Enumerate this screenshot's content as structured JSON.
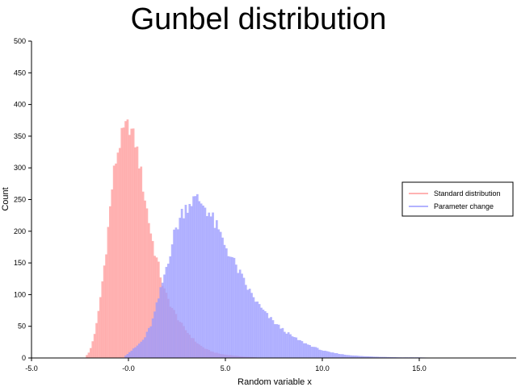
{
  "chart_data": {
    "type": "histogram",
    "title": "Gunbel distribution",
    "xlabel": "Random variable x",
    "ylabel": "Count",
    "xlim": [
      -5.0,
      20.0
    ],
    "ylim": [
      0,
      500
    ],
    "x_tick_labels": [
      "-5.0",
      "-0.0",
      "5.0",
      "10.0",
      "15.0"
    ],
    "y_tick_labels": [
      "0",
      "50",
      "100",
      "150",
      "200",
      "250",
      "300",
      "350",
      "400",
      "450",
      "500"
    ],
    "grid": false,
    "legend_position": "right",
    "series": [
      {
        "name": "Standard distribution",
        "color": "#ff9999",
        "opacity": 0.75,
        "points": [
          [
            -2.2,
            3
          ],
          [
            -2.0,
            10
          ],
          [
            -1.8,
            32
          ],
          [
            -1.6,
            60
          ],
          [
            -1.4,
            108
          ],
          [
            -1.2,
            158
          ],
          [
            -1.0,
            220
          ],
          [
            -0.8,
            285
          ],
          [
            -0.6,
            320
          ],
          [
            -0.4,
            345
          ],
          [
            -0.2,
            362
          ],
          [
            0.0,
            368
          ],
          [
            0.2,
            355
          ],
          [
            0.4,
            335
          ],
          [
            0.6,
            300
          ],
          [
            0.8,
            262
          ],
          [
            1.0,
            225
          ],
          [
            1.2,
            190
          ],
          [
            1.4,
            162
          ],
          [
            1.6,
            138
          ],
          [
            1.8,
            110
          ],
          [
            2.0,
            95
          ],
          [
            2.2,
            82
          ],
          [
            2.4,
            70
          ],
          [
            2.6,
            60
          ],
          [
            2.8,
            50
          ],
          [
            3.0,
            42
          ],
          [
            3.2,
            35
          ],
          [
            3.4,
            28
          ],
          [
            3.6,
            22
          ],
          [
            3.8,
            18
          ],
          [
            4.0,
            14
          ],
          [
            4.4,
            9
          ],
          [
            4.8,
            6
          ],
          [
            5.4,
            4
          ],
          [
            6.0,
            2
          ],
          [
            6.6,
            1
          ]
        ]
      },
      {
        "name": "Parameter change",
        "color": "#9999ff",
        "opacity": 0.75,
        "points": [
          [
            -0.2,
            3
          ],
          [
            0.0,
            8
          ],
          [
            0.4,
            18
          ],
          [
            0.8,
            30
          ],
          [
            1.2,
            55
          ],
          [
            1.6,
            100
          ],
          [
            2.0,
            150
          ],
          [
            2.4,
            200
          ],
          [
            2.8,
            232
          ],
          [
            3.2,
            248
          ],
          [
            3.6,
            250
          ],
          [
            4.0,
            238
          ],
          [
            4.4,
            215
          ],
          [
            4.8,
            190
          ],
          [
            5.2,
            165
          ],
          [
            5.6,
            142
          ],
          [
            6.0,
            118
          ],
          [
            6.4,
            98
          ],
          [
            6.8,
            80
          ],
          [
            7.2,
            66
          ],
          [
            7.6,
            54
          ],
          [
            8.0,
            44
          ],
          [
            8.4,
            35
          ],
          [
            8.8,
            28
          ],
          [
            9.2,
            22
          ],
          [
            9.6,
            17
          ],
          [
            10.0,
            12
          ],
          [
            10.4,
            9
          ],
          [
            10.8,
            7
          ],
          [
            11.2,
            5
          ],
          [
            11.6,
            4
          ],
          [
            12.0,
            3
          ],
          [
            12.8,
            2
          ],
          [
            14.0,
            1
          ],
          [
            15.0,
            1
          ],
          [
            16.0,
            0
          ]
        ]
      }
    ]
  }
}
